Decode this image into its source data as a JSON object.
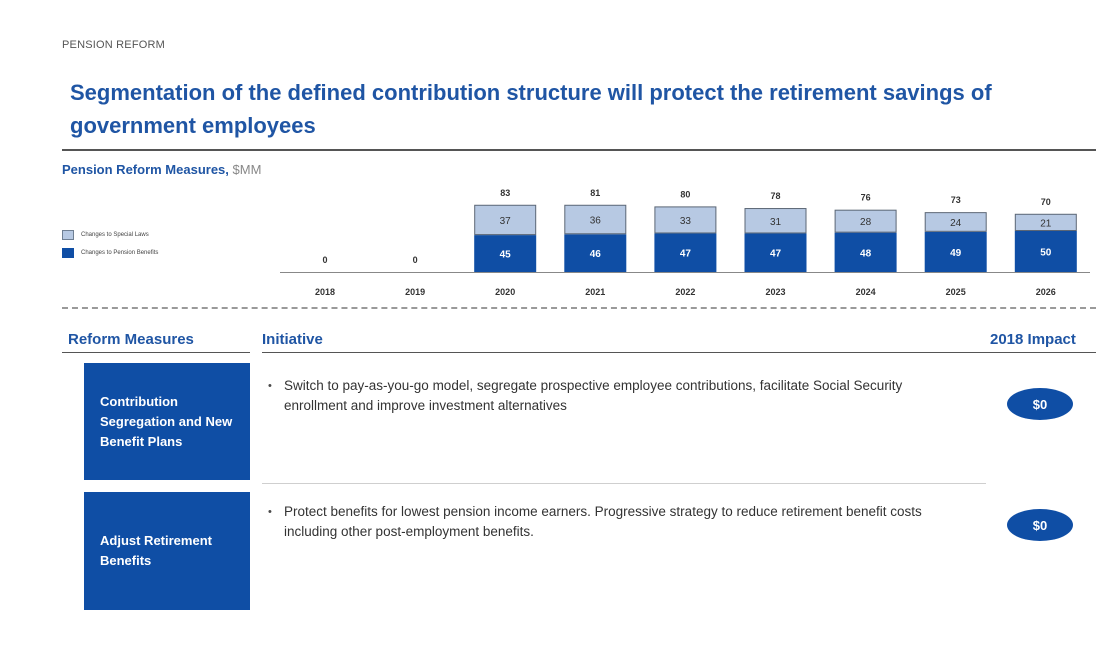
{
  "header": {
    "section_label": "PENSION REFORM",
    "headline_line1": "Segmentation of the defined contribution structure will protect the retirement savings of",
    "headline_line2": "government employees"
  },
  "chart_data": {
    "type": "bar",
    "stacked": true,
    "title": "Pension Reform Measures,",
    "unit": "$MM",
    "categories": [
      "2018",
      "2019",
      "2020",
      "2021",
      "2022",
      "2023",
      "2024",
      "2025",
      "2026"
    ],
    "series": [
      {
        "name": "Changes to Pension Benefits",
        "color": "#0f4ea5",
        "values": [
          0,
          0,
          45,
          46,
          47,
          47,
          48,
          49,
          50
        ]
      },
      {
        "name": "Changes to Special Laws",
        "color": "#b7c9e3",
        "values": [
          0,
          0,
          37,
          36,
          33,
          31,
          28,
          24,
          21
        ]
      }
    ],
    "totals": [
      0,
      0,
      83,
      81,
      80,
      78,
      76,
      73,
      70
    ],
    "ylim": [
      0,
      83
    ],
    "legend_position": "left",
    "grid": false
  },
  "table": {
    "headers": {
      "reform": "Reform Measures",
      "initiative": "Initiative",
      "impact": "2018 Impact"
    },
    "rows": [
      {
        "measure": "Contribution Segregation and New Benefit Plans",
        "initiative": "Switch to pay-as-you-go model, segregate prospective employee contributions, facilitate Social Security enrollment and improve investment alternatives",
        "impact": "$0"
      },
      {
        "measure": "Adjust Retirement Benefits",
        "initiative": "Protect benefits for lowest pension income earners. Progressive strategy to reduce retirement benefit costs including other post-employment benefits.",
        "impact": "$0"
      }
    ]
  }
}
